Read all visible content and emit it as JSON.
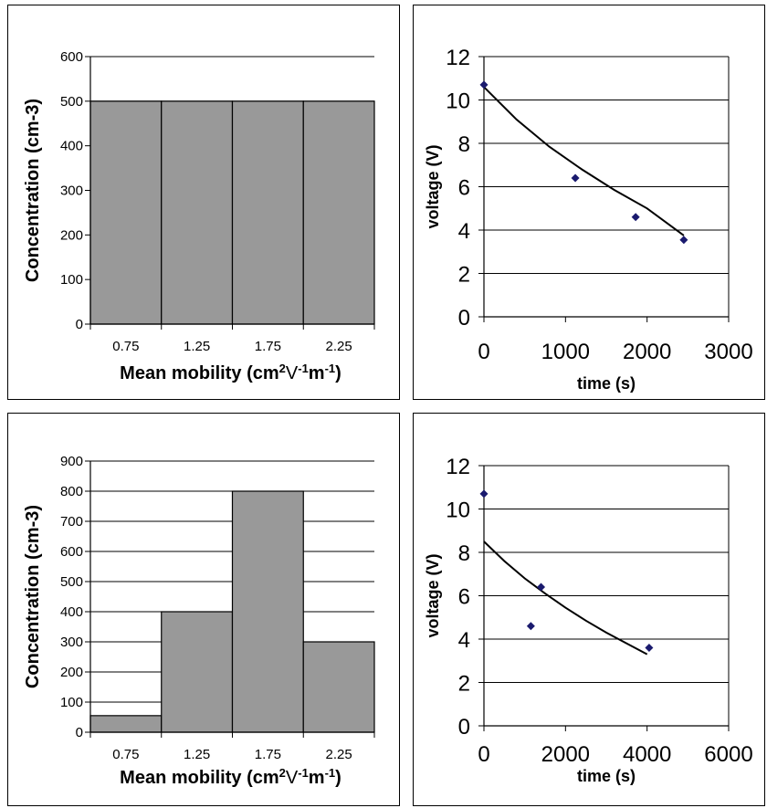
{
  "chart_data": [
    {
      "type": "bar",
      "xlabel": "Mean mobility (cm",
      "xlabel_parts": [
        "Mean mobility (cm",
        "2",
        "V",
        "-1",
        "m",
        "-1",
        ")"
      ],
      "ylabel": "Concentration (cm-3)",
      "categories": [
        "0.75",
        "1.25",
        "1.75",
        "2.25"
      ],
      "values": [
        500,
        500,
        500,
        500
      ],
      "ylim": [
        0,
        600
      ],
      "yticks": [
        "0",
        "100",
        "200",
        "300",
        "400",
        "500",
        "600"
      ],
      "grid": true,
      "bar_color": "#999999"
    },
    {
      "type": "scatter",
      "xlabel": "time (s)",
      "ylabel": "voltage (V)",
      "xlim": [
        0,
        3000
      ],
      "ylim": [
        0,
        12
      ],
      "xticks": [
        "0",
        "1000",
        "2000",
        "3000"
      ],
      "yticks": [
        "0",
        "2",
        "4",
        "6",
        "8",
        "10",
        "12"
      ],
      "points": {
        "x": [
          0,
          1120,
          1860,
          2450
        ],
        "y": [
          10.7,
          6.4,
          4.6,
          3.55
        ]
      },
      "fit": {
        "x": [
          0,
          400,
          800,
          1200,
          1600,
          2000,
          2450
        ],
        "y": [
          10.6,
          9.1,
          7.85,
          6.8,
          5.85,
          5.0,
          3.75
        ]
      },
      "grid": true,
      "marker_color": "#1a1a6e"
    },
    {
      "type": "bar",
      "xlabel": "Mean mobility (cm",
      "xlabel_parts": [
        "Mean mobility (cm",
        "2",
        "V",
        "-1",
        "m",
        "-1",
        ")"
      ],
      "ylabel": "Concentration (cm-3)",
      "categories": [
        "0.75",
        "1.25",
        "1.75",
        "2.25"
      ],
      "values": [
        55,
        400,
        800,
        300
      ],
      "ylim": [
        0,
        900
      ],
      "yticks": [
        "0",
        "100",
        "200",
        "300",
        "400",
        "500",
        "600",
        "700",
        "800",
        "900"
      ],
      "grid": true,
      "bar_color": "#999999"
    },
    {
      "type": "scatter",
      "xlabel": "time (s)",
      "ylabel": "voltage (V)",
      "xlim": [
        0,
        6000
      ],
      "ylim": [
        0,
        12
      ],
      "xticks": [
        "0",
        "2000",
        "4000",
        "6000"
      ],
      "yticks": [
        "0",
        "2",
        "4",
        "6",
        "8",
        "10",
        "12"
      ],
      "points": {
        "x": [
          0,
          1150,
          1400,
          4050
        ],
        "y": [
          10.7,
          4.6,
          6.4,
          3.6
        ]
      },
      "fit": {
        "x": [
          0,
          500,
          1000,
          1500,
          2000,
          2500,
          3000,
          3500,
          4000
        ],
        "y": [
          8.5,
          7.6,
          6.8,
          6.1,
          5.45,
          4.85,
          4.3,
          3.8,
          3.3
        ]
      },
      "grid": true,
      "marker_color": "#1a1a6e"
    }
  ]
}
